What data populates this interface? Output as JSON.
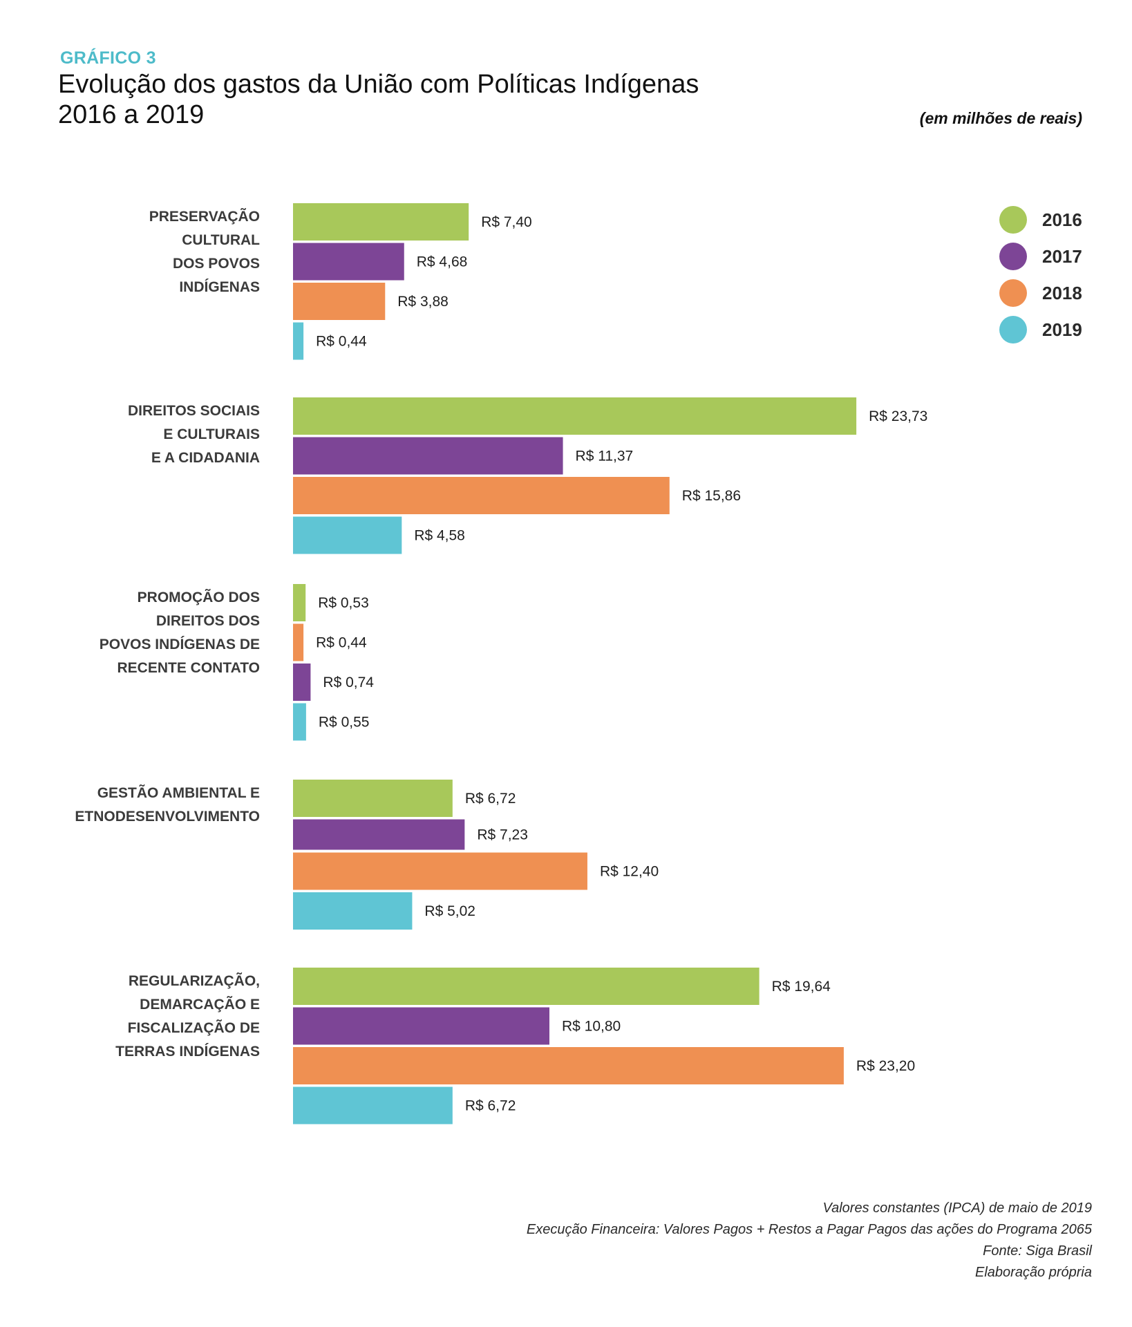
{
  "header": {
    "kicker": "GRÁFICO 3",
    "title_line1": "Evolução dos gastos da União com Políticas Indígenas",
    "title_line2": "2016 a 2019",
    "unit_note": "(em milhões de reais)"
  },
  "footer": {
    "lines": [
      "Valores constantes (IPCA) de maio de 2019",
      "Execução Financeira: Valores Pagos + Restos a Pagar Pagos das ações do Programa 2065",
      "Fonte: Siga Brasil",
      "Elaboração própria"
    ]
  },
  "colors": {
    "2016": "#a8c85a",
    "2017": "#7d4596",
    "2018": "#ef9052",
    "2019": "#5fc5d4",
    "kicker": "#4dbbc9"
  },
  "chart_data": {
    "type": "bar",
    "orientation": "horizontal",
    "title": "Evolução dos gastos da União com Políticas Indígenas 2016 a 2019",
    "unit": "milhões de reais",
    "value_prefix": "R$ ",
    "xlabel": "",
    "ylabel": "",
    "grid": false,
    "legend_position": "top-right",
    "legend": [
      "2016",
      "2017",
      "2018",
      "2019"
    ],
    "categories": [
      {
        "label_lines": [
          "PRESERVAÇÃO",
          "CULTURAL",
          "DOS POVOS",
          "INDÍGENAS"
        ],
        "bars": [
          {
            "series": "2016",
            "value": 7.4,
            "label": "R$ 7,40"
          },
          {
            "series": "2017",
            "value": 4.68,
            "label": "R$ 4,68"
          },
          {
            "series": "2018",
            "value": 3.88,
            "label": "R$ 3,88"
          },
          {
            "series": "2019",
            "value": 0.44,
            "label": "R$ 0,44"
          }
        ]
      },
      {
        "label_lines": [
          "DIREITOS SOCIAIS",
          "E CULTURAIS",
          "E A CIDADANIA"
        ],
        "bars": [
          {
            "series": "2016",
            "value": 23.73,
            "label": "R$ 23,73"
          },
          {
            "series": "2017",
            "value": 11.37,
            "label": "R$ 11,37"
          },
          {
            "series": "2018",
            "value": 15.86,
            "label": "R$ 15,86"
          },
          {
            "series": "2019",
            "value": 4.58,
            "label": "R$ 4,58"
          }
        ]
      },
      {
        "label_lines": [
          "PROMOÇÃO DOS",
          "DIREITOS DOS",
          "POVOS INDÍGENAS DE",
          "RECENTE CONTATO"
        ],
        "bars": [
          {
            "series": "2016",
            "value": 0.53,
            "label": "R$ 0,53"
          },
          {
            "series": "2018",
            "value": 0.44,
            "label": "R$ 0,44"
          },
          {
            "series": "2017",
            "value": 0.74,
            "label": "R$ 0,74"
          },
          {
            "series": "2019",
            "value": 0.55,
            "label": "R$ 0,55"
          }
        ]
      },
      {
        "label_lines": [
          "GESTÃO AMBIENTAL E",
          "ETNODESENVOLVIMENTO"
        ],
        "bars": [
          {
            "series": "2016",
            "value": 6.72,
            "label": "R$ 6,72"
          },
          {
            "series": "2017",
            "value": 7.23,
            "label": "R$ 7,23"
          },
          {
            "series": "2018",
            "value": 12.4,
            "label": "R$ 12,40"
          },
          {
            "series": "2019",
            "value": 5.02,
            "label": "R$ 5,02"
          }
        ]
      },
      {
        "label_lines": [
          "REGULARIZAÇÃO,",
          "DEMARCAÇÃO E",
          "FISCALIZAÇÃO DE",
          "TERRAS INDÍGENAS"
        ],
        "bars": [
          {
            "series": "2016",
            "value": 19.64,
            "label": "R$ 19,64"
          },
          {
            "series": "2017",
            "value": 10.8,
            "label": "R$ 10,80"
          },
          {
            "series": "2018",
            "value": 23.2,
            "label": "R$ 23,20"
          },
          {
            "series": "2019",
            "value": 6.72,
            "label": "R$ 6,72"
          }
        ]
      }
    ]
  }
}
